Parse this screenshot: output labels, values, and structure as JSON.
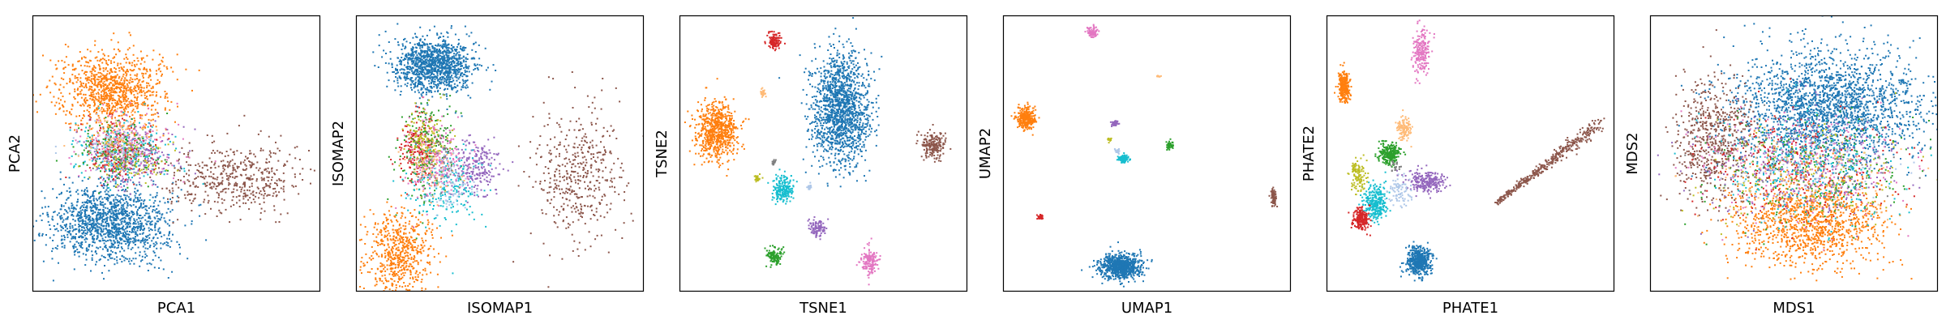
{
  "palette": {
    "blue": "#1f77b4",
    "orange": "#ff7f0e",
    "green": "#2ca02c",
    "red": "#d62728",
    "purple": "#9467bd",
    "brown": "#8c564b",
    "pink": "#e377c2",
    "olive": "#bcbd22",
    "cyan": "#17becf",
    "lightblue": "#aec7e8",
    "peach": "#ffbb78",
    "gray": "#7f7f7f"
  },
  "chart_data": [
    {
      "type": "scatter",
      "xlabel": "PCA1",
      "ylabel": "PCA2",
      "xlim": [
        0,
        100
      ],
      "ylim": [
        0,
        100
      ],
      "ticks": "none",
      "grid": false,
      "legend": "none",
      "clusters": [
        {
          "color": "blue",
          "cx": 27,
          "cy": 25,
          "sx": 10,
          "sy": 7,
          "n": 1400
        },
        {
          "color": "orange",
          "cx": 28,
          "cy": 73,
          "sx": 9,
          "sy": 7,
          "n": 1000
        },
        {
          "color": "brown",
          "cx": 70,
          "cy": 41,
          "sx": 12,
          "sy": 6,
          "n": 500
        },
        {
          "color": "pink",
          "cx": 32,
          "cy": 51,
          "sx": 8,
          "sy": 6,
          "n": 250
        },
        {
          "color": "cyan",
          "cx": 32,
          "cy": 50,
          "sx": 8,
          "sy": 6,
          "n": 200
        },
        {
          "color": "purple",
          "cx": 34,
          "cy": 50,
          "sx": 8,
          "sy": 6,
          "n": 200
        },
        {
          "color": "green",
          "cx": 30,
          "cy": 50,
          "sx": 7,
          "sy": 6,
          "n": 150
        },
        {
          "color": "red",
          "cx": 31,
          "cy": 51,
          "sx": 7,
          "sy": 6,
          "n": 150
        },
        {
          "color": "olive",
          "cx": 33,
          "cy": 49,
          "sx": 7,
          "sy": 5,
          "n": 100
        },
        {
          "color": "lightblue",
          "cx": 30,
          "cy": 52,
          "sx": 7,
          "sy": 5,
          "n": 80
        },
        {
          "color": "peach",
          "cx": 29,
          "cy": 56,
          "sx": 6,
          "sy": 5,
          "n": 80
        },
        {
          "color": "gray",
          "cx": 32,
          "cy": 50,
          "sx": 6,
          "sy": 5,
          "n": 40
        }
      ]
    },
    {
      "type": "scatter",
      "xlabel": "ISOMAP1",
      "ylabel": "ISOMAP2",
      "xlim": [
        0,
        100
      ],
      "ylim": [
        0,
        100
      ],
      "ticks": "none",
      "grid": false,
      "legend": "none",
      "clusters": [
        {
          "color": "blue",
          "cx": 27,
          "cy": 82,
          "sx": 7,
          "sy": 5,
          "n": 1200
        },
        {
          "color": "orange",
          "cx": 15,
          "cy": 14,
          "sx": 6,
          "sy": 8,
          "n": 600
        },
        {
          "color": "brown",
          "cx": 76,
          "cy": 42,
          "sx": 8,
          "sy": 12,
          "n": 450
        },
        {
          "color": "red",
          "cx": 21,
          "cy": 52,
          "sx": 3,
          "sy": 6,
          "n": 200
        },
        {
          "color": "green",
          "cx": 25,
          "cy": 50,
          "sx": 5,
          "sy": 10,
          "n": 200
        },
        {
          "color": "purple",
          "cx": 42,
          "cy": 45,
          "sx": 4,
          "sy": 5,
          "n": 220
        },
        {
          "color": "cyan",
          "cx": 30,
          "cy": 38,
          "sx": 6,
          "sy": 7,
          "n": 200
        },
        {
          "color": "pink",
          "cx": 28,
          "cy": 48,
          "sx": 5,
          "sy": 7,
          "n": 200
        },
        {
          "color": "olive",
          "cx": 24,
          "cy": 55,
          "sx": 4,
          "sy": 6,
          "n": 120
        },
        {
          "color": "peach",
          "cx": 26,
          "cy": 45,
          "sx": 4,
          "sy": 5,
          "n": 80
        },
        {
          "color": "lightblue",
          "cx": 32,
          "cy": 40,
          "sx": 5,
          "sy": 5,
          "n": 80
        },
        {
          "color": "gray",
          "cx": 29,
          "cy": 47,
          "sx": 4,
          "sy": 5,
          "n": 40
        }
      ]
    },
    {
      "type": "scatter",
      "xlabel": "TSNE1",
      "ylabel": "TSNE2",
      "xlim": [
        0,
        100
      ],
      "ylim": [
        0,
        100
      ],
      "ticks": "none",
      "grid": false,
      "legend": "none",
      "clusters": [
        {
          "color": "blue",
          "cx": 56,
          "cy": 66,
          "sx": 5,
          "sy": 10,
          "n": 1500
        },
        {
          "color": "orange",
          "cx": 13,
          "cy": 58,
          "sx": 3.5,
          "sy": 5,
          "n": 700
        },
        {
          "color": "red",
          "cx": 33,
          "cy": 91,
          "sx": 1.2,
          "sy": 1.6,
          "n": 120
        },
        {
          "color": "brown",
          "cx": 88,
          "cy": 53,
          "sx": 2,
          "sy": 2.4,
          "n": 200
        },
        {
          "color": "cyan",
          "cx": 36,
          "cy": 37,
          "sx": 1.8,
          "sy": 2.5,
          "n": 200
        },
        {
          "color": "purple",
          "cx": 48,
          "cy": 23,
          "sx": 1.3,
          "sy": 1.6,
          "n": 100
        },
        {
          "color": "green",
          "cx": 33,
          "cy": 13,
          "sx": 1.4,
          "sy": 1.7,
          "n": 120
        },
        {
          "color": "pink",
          "cx": 66,
          "cy": 11,
          "sx": 1.6,
          "sy": 2.2,
          "n": 150
        },
        {
          "color": "peach",
          "cx": 29,
          "cy": 72,
          "sx": 0.6,
          "sy": 0.8,
          "n": 30
        },
        {
          "color": "olive",
          "cx": 27,
          "cy": 41,
          "sx": 0.6,
          "sy": 0.7,
          "n": 30
        },
        {
          "color": "lightblue",
          "cx": 45,
          "cy": 38,
          "sx": 0.6,
          "sy": 0.6,
          "n": 20
        },
        {
          "color": "gray",
          "cx": 33,
          "cy": 47,
          "sx": 0.5,
          "sy": 0.5,
          "n": 15
        }
      ]
    },
    {
      "type": "scatter",
      "xlabel": "UMAP1",
      "ylabel": "UMAP2",
      "xlim": [
        0,
        100
      ],
      "ylim": [
        0,
        100
      ],
      "ticks": "none",
      "grid": false,
      "legend": "none",
      "clusters": [
        {
          "color": "blue",
          "cx": 41,
          "cy": 9,
          "sx": 3.5,
          "sy": 2.2,
          "n": 800
        },
        {
          "color": "orange",
          "cx": 8,
          "cy": 63,
          "sx": 1.6,
          "sy": 2.0,
          "n": 300
        },
        {
          "color": "pink",
          "cx": 31,
          "cy": 94,
          "sx": 0.8,
          "sy": 1.0,
          "n": 80
        },
        {
          "color": "brown",
          "cx": 94,
          "cy": 34,
          "sx": 0.5,
          "sy": 1.6,
          "n": 80
        },
        {
          "color": "green",
          "cx": 58,
          "cy": 53,
          "sx": 0.6,
          "sy": 0.8,
          "n": 60
        },
        {
          "color": "cyan",
          "cx": 42,
          "cy": 48,
          "sx": 0.9,
          "sy": 0.7,
          "n": 120
        },
        {
          "color": "purple",
          "cx": 39,
          "cy": 61,
          "sx": 0.6,
          "sy": 0.6,
          "n": 40
        },
        {
          "color": "red",
          "cx": 13,
          "cy": 27,
          "sx": 0.5,
          "sy": 0.5,
          "n": 30
        },
        {
          "color": "olive",
          "cx": 37,
          "cy": 55,
          "sx": 0.4,
          "sy": 0.4,
          "n": 15
        },
        {
          "color": "lightblue",
          "cx": 40,
          "cy": 51,
          "sx": 0.4,
          "sy": 0.4,
          "n": 15
        },
        {
          "color": "peach",
          "cx": 54,
          "cy": 78,
          "sx": 0.3,
          "sy": 0.3,
          "n": 8
        }
      ]
    },
    {
      "type": "scatter",
      "xlabel": "PHATE1",
      "ylabel": "PHATE2",
      "xlim": [
        0,
        100
      ],
      "ylim": [
        0,
        100
      ],
      "ticks": "none",
      "grid": false,
      "legend": "none",
      "clusters": [
        {
          "color": "blue",
          "cx": 32,
          "cy": 11,
          "sx": 2.2,
          "sy": 2.5,
          "n": 500
        },
        {
          "color": "orange",
          "cx": 6,
          "cy": 74,
          "sx": 1.2,
          "sy": 3.0,
          "n": 250
        },
        {
          "color": "pink",
          "cx": 33,
          "cy": 87,
          "sx": 1.5,
          "sy": 4.0,
          "n": 200
        },
        {
          "color": "green",
          "cx": 22,
          "cy": 50,
          "sx": 1.8,
          "sy": 2.0,
          "n": 250
        },
        {
          "color": "purple",
          "cx": 35,
          "cy": 40,
          "sx": 3.5,
          "sy": 2.0,
          "n": 250
        },
        {
          "color": "cyan",
          "cx": 17,
          "cy": 32,
          "sx": 2.0,
          "sy": 3.0,
          "n": 300
        },
        {
          "color": "red",
          "cx": 12,
          "cy": 26,
          "sx": 1.5,
          "sy": 2.0,
          "n": 200
        },
        {
          "color": "olive",
          "cx": 11,
          "cy": 42,
          "sx": 1.5,
          "sy": 3.0,
          "n": 120
        },
        {
          "color": "peach",
          "cx": 27,
          "cy": 59,
          "sx": 1.2,
          "sy": 2.0,
          "n": 120
        },
        {
          "color": "lightblue",
          "cx": 26,
          "cy": 36,
          "sx": 2.0,
          "sy": 2.5,
          "n": 80
        },
        {
          "color": "gray",
          "cx": 24,
          "cy": 45,
          "sx": 1.0,
          "sy": 1.0,
          "n": 20
        },
        {
          "color": "brown",
          "type": "line-cluster",
          "x0": 59,
          "y0": 32,
          "x1": 95,
          "y1": 61,
          "spread": 1.2,
          "n": 400
        }
      ]
    },
    {
      "type": "scatter",
      "xlabel": "MDS1",
      "ylabel": "MDS2",
      "xlim": [
        0,
        100
      ],
      "ylim": [
        0,
        100
      ],
      "ticks": "none",
      "grid": false,
      "legend": "none",
      "clusters": [
        {
          "color": "blue",
          "cx": 62,
          "cy": 67,
          "sx": 17,
          "sy": 11,
          "n": 2200
        },
        {
          "color": "orange",
          "cx": 55,
          "cy": 25,
          "sx": 13,
          "sy": 8,
          "n": 1200
        },
        {
          "color": "brown",
          "cx": 22,
          "cy": 55,
          "sx": 7,
          "sy": 11,
          "n": 600
        },
        {
          "color": "pink",
          "cx": 55,
          "cy": 45,
          "sx": 18,
          "sy": 10,
          "n": 300
        },
        {
          "color": "green",
          "cx": 56,
          "cy": 44,
          "sx": 18,
          "sy": 10,
          "n": 250
        },
        {
          "color": "purple",
          "cx": 54,
          "cy": 46,
          "sx": 18,
          "sy": 10,
          "n": 250
        },
        {
          "color": "red",
          "cx": 52,
          "cy": 44,
          "sx": 18,
          "sy": 10,
          "n": 250
        },
        {
          "color": "cyan",
          "cx": 53,
          "cy": 45,
          "sx": 17,
          "sy": 10,
          "n": 250
        },
        {
          "color": "olive",
          "cx": 55,
          "cy": 43,
          "sx": 17,
          "sy": 10,
          "n": 150
        },
        {
          "color": "lightblue",
          "cx": 57,
          "cy": 47,
          "sx": 17,
          "sy": 9,
          "n": 120
        },
        {
          "color": "peach",
          "cx": 50,
          "cy": 42,
          "sx": 17,
          "sy": 9,
          "n": 120
        },
        {
          "color": "gray",
          "cx": 54,
          "cy": 44,
          "sx": 16,
          "sy": 9,
          "n": 60
        }
      ]
    }
  ]
}
